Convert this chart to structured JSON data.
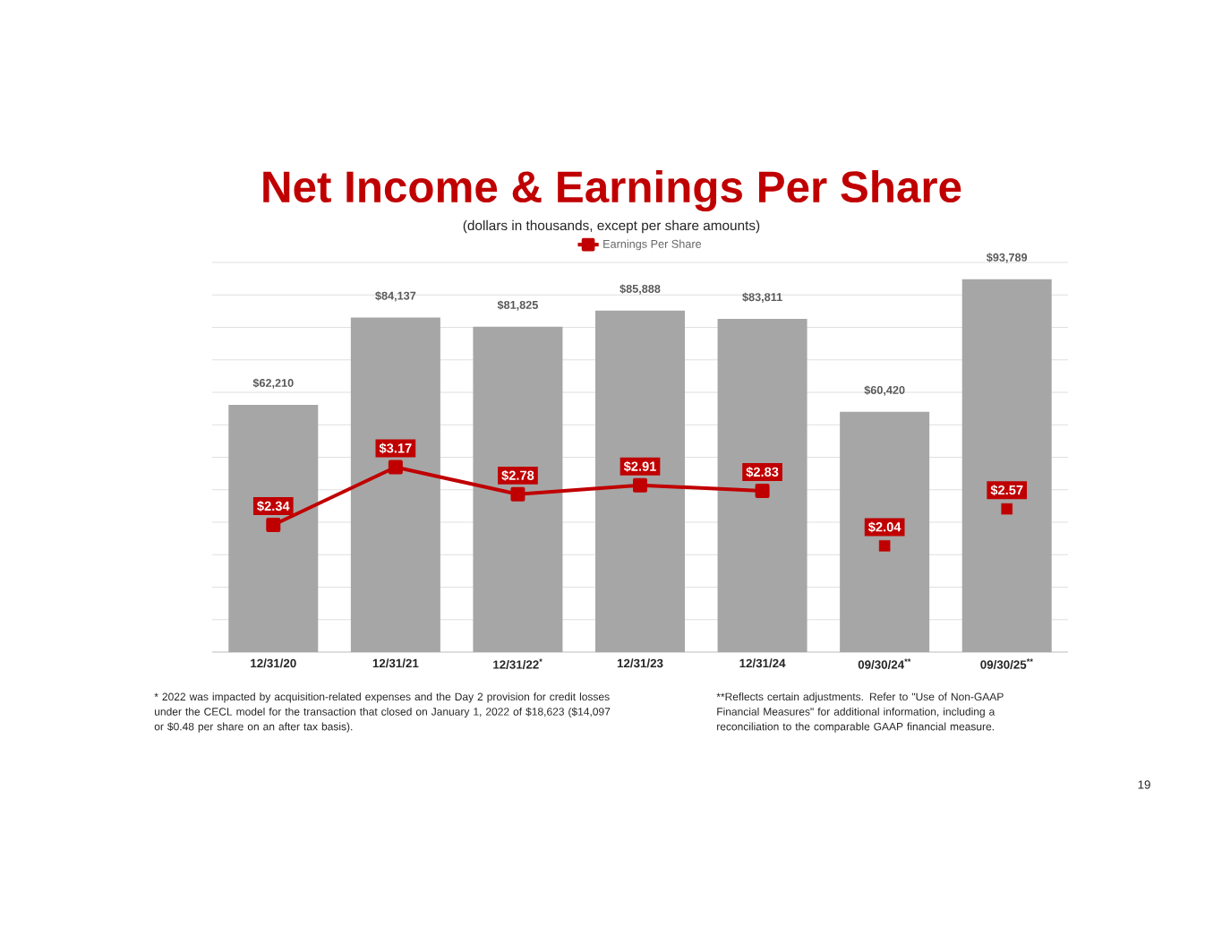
{
  "chart_data": {
    "type": "bar",
    "title": "Net Income & Earnings Per Share",
    "subtitle": "(dollars in thousands, except per share amounts)",
    "categories": [
      "12/31/20",
      "12/31/21",
      "12/31/22$^{*}$",
      "12/31/23",
      "12/31/24",
      "09/30/24$^{**}$",
      "09/30/25$^{**}$"
    ],
    "series": [
      {
        "color": "#a6a6a6",
        "values": [
          62210,
          84137,
          81825,
          85888,
          83811,
          60420,
          93789
        ],
        "value_labels": [
          "$62,210",
          "$84,137",
          "$81,825",
          "$85,888",
          "$83,811",
          "$60,420",
          "$93,789"
        ]
      },
      {
        "type": "line",
        "axis": "y2",
        "name": "Earnings Per Share",
        "color": "#c00000",
        "values": [
          2.34,
          3.17,
          2.78,
          2.91,
          2.83,
          null,
          null
        ],
        "value_labels": [
          "$2.34",
          "$3.17",
          "$2.78",
          "$2.91",
          "$2.83",
          null,
          null
        ]
      },
      {
        "type": "scatter",
        "axis": "y2",
        "color": "#c00000",
        "values": [
          null,
          null,
          null,
          null,
          null,
          2.04,
          2.57
        ],
        "value_labels": [
          null,
          null,
          null,
          null,
          null,
          "$2.04",
          "$2.57"
        ]
      }
    ],
    "tick_labels": "x",
    "grid": "y",
    "legend": "top",
    "marker": "square",
    "line_style": "solid",
    "annotations": [
      "* 2022 was impacted by acquisition-related expenses and the Day 2 provision for credit losses under the CECL model for the transaction that closed on January 1, 2022 of $18,623 ($14,097 or $0.48 per share on an after tax basis).",
      "**Reflects certain adjustments. Refer to \"Use of Non-GAAP Financial Measures\" for additional information, including a reconciliation to the comparable GAAP financial measure.",
      "19"
    ]
  }
}
